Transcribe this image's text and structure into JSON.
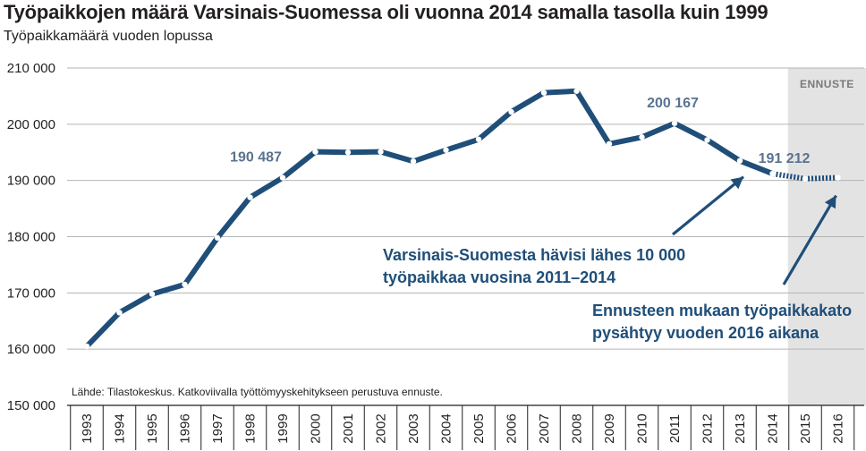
{
  "chart_data": {
    "type": "line",
    "title": "Työpaikkojen määrä Varsinais-Suomessa oli vuonna 2014 samalla tasolla kuin 1999",
    "subtitle": "Työpaikkamäärä vuoden lopussa",
    "source": "Lähde: Tilastokeskus. Katkoviivalla työttömyyskehitykseen perustuva ennuste.",
    "forecast_label": "ENNUSTE",
    "ylim": [
      150000,
      210000
    ],
    "yticks": [
      150000,
      160000,
      170000,
      180000,
      190000,
      200000,
      210000
    ],
    "ytick_labels": [
      "150 000",
      "160 000",
      "170 000",
      "180 000",
      "190 000",
      "200 000",
      "210 000"
    ],
    "x": [
      "1993",
      "1994",
      "1995",
      "1996",
      "1997",
      "1998",
      "1999",
      "2000",
      "2001",
      "2002",
      "2003",
      "2004",
      "2005",
      "2006",
      "2007",
      "2008",
      "2009",
      "2010",
      "2011",
      "2012",
      "2013",
      "2014",
      "2015",
      "2016"
    ],
    "values": [
      160500,
      166500,
      169800,
      171500,
      179800,
      187000,
      190487,
      195100,
      195000,
      195100,
      193400,
      195400,
      197300,
      202200,
      205600,
      205900,
      196500,
      197700,
      200167,
      197200,
      193500,
      191212,
      190300,
      190500
    ],
    "forecast_from": "2014",
    "forecast_years": [
      "2015",
      "2016"
    ],
    "grid": true,
    "line_color": "#1f4e79",
    "forecast_shade": "#e3e3e3",
    "data_labels": [
      {
        "x": "1999",
        "text": "190 487"
      },
      {
        "x": "2011",
        "text": "200 167"
      },
      {
        "x": "2014",
        "text": "191 212"
      }
    ],
    "annotations": [
      {
        "lines": [
          "Varsinais-Suomesta hävisi lähes 10 000",
          "työpaikkaa vuosina 2011–2014"
        ],
        "arrow_to": "2013"
      },
      {
        "lines": [
          "Ennusteen mukaan työpaikkakato",
          "pysähtyy vuoden 2016 aikana"
        ],
        "arrow_to": "2016"
      }
    ]
  }
}
